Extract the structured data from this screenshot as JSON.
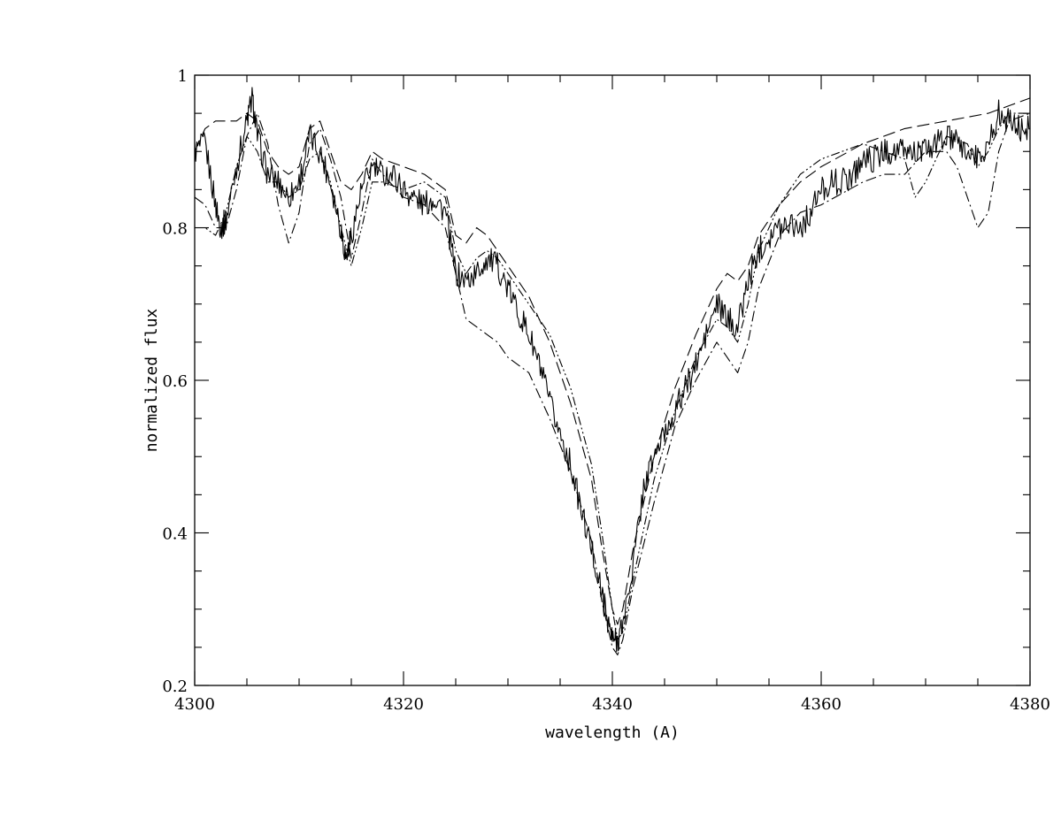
{
  "chart_data": {
    "type": "line",
    "title": "",
    "xlabel": "wavelength (A)",
    "ylabel": "normalized flux",
    "xlim": [
      4300,
      4380
    ],
    "ylim": [
      0.2,
      1.0
    ],
    "x_ticks": [
      4300,
      4320,
      4340,
      4360,
      4380
    ],
    "y_ticks": [
      0.2,
      0.4,
      0.6,
      0.8,
      1.0
    ],
    "x_tick_labels": [
      "4300",
      "4320",
      "4340",
      "4360",
      "4380"
    ],
    "y_tick_labels": [
      "0.2",
      "0.4",
      "0.6",
      "0.8",
      "1"
    ],
    "grid": false,
    "legend": "none",
    "series": [
      {
        "style": "solid-observed",
        "x": [
          4300,
          4301,
          4302,
          4302.5,
          4303,
          4304,
          4305,
          4305.5,
          4306,
          4307,
          4308,
          4309,
          4310,
          4311,
          4312,
          4313,
          4314,
          4314.5,
          4315,
          4316,
          4317,
          4318,
          4319,
          4320,
          4321,
          4322,
          4323,
          4324,
          4325,
          4326,
          4327,
          4328,
          4329,
          4330,
          4331,
          4332,
          4333,
          4334,
          4335,
          4336,
          4337,
          4338,
          4339,
          4339.5,
          4340,
          4340.5,
          4341,
          4342,
          4343,
          4344,
          4345,
          4346,
          4347,
          4348,
          4349,
          4350,
          4351,
          4352,
          4353,
          4354,
          4355,
          4356,
          4357,
          4358,
          4359,
          4360,
          4361,
          4362,
          4363,
          4364,
          4365,
          4366,
          4367,
          4368,
          4369,
          4370,
          4371,
          4372,
          4373,
          4374,
          4375,
          4376,
          4377,
          4378,
          4379,
          4380
        ],
        "y": [
          0.9,
          0.91,
          0.83,
          0.8,
          0.81,
          0.88,
          0.94,
          0.97,
          0.92,
          0.87,
          0.86,
          0.84,
          0.86,
          0.92,
          0.9,
          0.86,
          0.8,
          0.76,
          0.79,
          0.85,
          0.88,
          0.87,
          0.87,
          0.85,
          0.84,
          0.83,
          0.84,
          0.82,
          0.74,
          0.73,
          0.74,
          0.76,
          0.75,
          0.72,
          0.69,
          0.66,
          0.62,
          0.57,
          0.53,
          0.49,
          0.43,
          0.38,
          0.32,
          0.29,
          0.26,
          0.26,
          0.28,
          0.36,
          0.46,
          0.5,
          0.53,
          0.56,
          0.59,
          0.62,
          0.66,
          0.7,
          0.68,
          0.67,
          0.73,
          0.77,
          0.79,
          0.8,
          0.81,
          0.8,
          0.82,
          0.85,
          0.86,
          0.86,
          0.87,
          0.89,
          0.89,
          0.9,
          0.9,
          0.9,
          0.9,
          0.9,
          0.91,
          0.92,
          0.91,
          0.9,
          0.89,
          0.91,
          0.95,
          0.94,
          0.93,
          0.93
        ]
      },
      {
        "style": "long-dash",
        "x": [
          4300,
          4301,
          4302,
          4303,
          4304,
          4305,
          4306,
          4307,
          4308,
          4309,
          4310,
          4311,
          4312,
          4313,
          4314,
          4315,
          4316,
          4317,
          4318,
          4320,
          4322,
          4324,
          4325,
          4326,
          4327,
          4328,
          4329,
          4330,
          4332,
          4334,
          4336,
          4338,
          4339,
          4340,
          4340.5,
          4341,
          4342,
          4344,
          4346,
          4348,
          4350,
          4351,
          4352,
          4353,
          4354,
          4356,
          4358,
          4360,
          4364,
          4368,
          4372,
          4376,
          4378,
          4380
        ],
        "y": [
          0.9,
          0.93,
          0.94,
          0.94,
          0.94,
          0.95,
          0.94,
          0.9,
          0.88,
          0.87,
          0.88,
          0.93,
          0.94,
          0.9,
          0.86,
          0.85,
          0.87,
          0.9,
          0.89,
          0.88,
          0.87,
          0.85,
          0.79,
          0.78,
          0.8,
          0.79,
          0.77,
          0.75,
          0.71,
          0.65,
          0.57,
          0.47,
          0.38,
          0.3,
          0.28,
          0.3,
          0.38,
          0.5,
          0.59,
          0.66,
          0.72,
          0.74,
          0.73,
          0.75,
          0.79,
          0.83,
          0.86,
          0.88,
          0.91,
          0.93,
          0.94,
          0.95,
          0.96,
          0.97
        ]
      },
      {
        "style": "dash-dot",
        "x": [
          4300,
          4301,
          4302,
          4303,
          4304,
          4305,
          4306,
          4307,
          4308,
          4309,
          4310,
          4311,
          4312,
          4313,
          4314,
          4315,
          4316,
          4317,
          4318,
          4320,
          4322,
          4324,
          4325,
          4326,
          4327,
          4328,
          4329,
          4330,
          4332,
          4334,
          4336,
          4338,
          4339,
          4340,
          4340.5,
          4341,
          4342,
          4344,
          4346,
          4348,
          4350,
          4351,
          4352,
          4353,
          4354,
          4356,
          4358,
          4360,
          4364,
          4366,
          4368,
          4370,
          4372,
          4373,
          4374,
          4375,
          4376,
          4377,
          4378,
          4380
        ],
        "y": [
          0.84,
          0.83,
          0.8,
          0.8,
          0.85,
          0.92,
          0.95,
          0.91,
          0.83,
          0.78,
          0.82,
          0.91,
          0.93,
          0.89,
          0.84,
          0.76,
          0.82,
          0.89,
          0.87,
          0.84,
          0.83,
          0.8,
          0.74,
          0.68,
          0.67,
          0.66,
          0.65,
          0.63,
          0.61,
          0.55,
          0.48,
          0.39,
          0.31,
          0.25,
          0.24,
          0.26,
          0.33,
          0.44,
          0.54,
          0.6,
          0.65,
          0.63,
          0.61,
          0.65,
          0.72,
          0.79,
          0.82,
          0.83,
          0.86,
          0.87,
          0.87,
          0.9,
          0.9,
          0.88,
          0.84,
          0.8,
          0.82,
          0.9,
          0.94,
          0.95
        ]
      },
      {
        "style": "dash-dot-dot",
        "x": [
          4300,
          4301,
          4302,
          4303,
          4304,
          4305,
          4306,
          4307,
          4308,
          4309,
          4310,
          4311,
          4312,
          4313,
          4314,
          4315,
          4316,
          4317,
          4318,
          4320,
          4322,
          4323,
          4324,
          4325,
          4326,
          4327,
          4328,
          4329,
          4330,
          4332,
          4334,
          4336,
          4338,
          4339,
          4340,
          4340.5,
          4341,
          4342,
          4344,
          4346,
          4348,
          4350,
          4351,
          4352,
          4353,
          4354,
          4356,
          4358,
          4360,
          4364,
          4368,
          4369,
          4370,
          4372,
          4374,
          4375,
          4376,
          4377,
          4378,
          4380
        ],
        "y": [
          0.8,
          0.8,
          0.79,
          0.82,
          0.88,
          0.92,
          0.9,
          0.86,
          0.86,
          0.84,
          0.85,
          0.89,
          0.9,
          0.86,
          0.8,
          0.75,
          0.8,
          0.86,
          0.86,
          0.85,
          0.86,
          0.85,
          0.84,
          0.77,
          0.74,
          0.76,
          0.77,
          0.76,
          0.74,
          0.7,
          0.66,
          0.59,
          0.49,
          0.4,
          0.3,
          0.26,
          0.27,
          0.34,
          0.47,
          0.56,
          0.63,
          0.68,
          0.67,
          0.65,
          0.7,
          0.77,
          0.83,
          0.87,
          0.89,
          0.91,
          0.89,
          0.84,
          0.86,
          0.92,
          0.91,
          0.88,
          0.9,
          0.93,
          0.95,
          0.95
        ]
      }
    ]
  }
}
